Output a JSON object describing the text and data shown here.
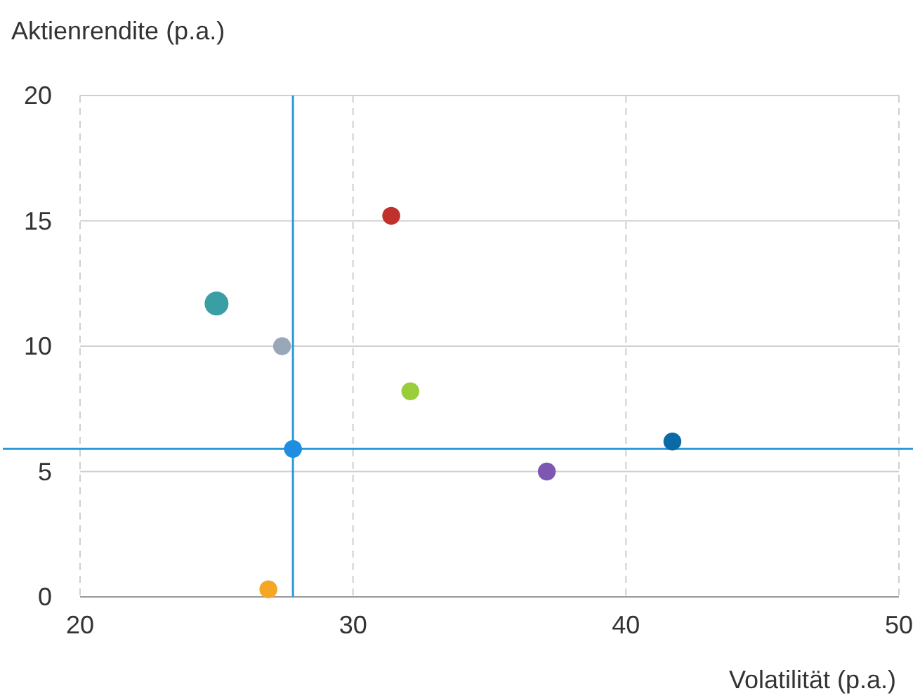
{
  "chart_data": {
    "type": "bubble",
    "xlabel": "Volatilität (p.a.)",
    "ylabel": "Aktienrendite (p.a.)",
    "x": [
      25.0,
      27.4,
      31.4,
      32.1,
      27.8,
      41.7,
      37.1,
      26.9
    ],
    "values": [
      11.7,
      10.0,
      15.2,
      8.2,
      5.9,
      6.2,
      5.0,
      0.3
    ],
    "sizes": [
      1,
      0.56,
      0.56,
      0.56,
      0.56,
      0.56,
      0.56,
      0.56
    ],
    "colors": [
      "#3a9ea5",
      "#98a8b8",
      "#c0312b",
      "#9acd3c",
      "#1e8fe0",
      "#0a6aa8",
      "#7e57b2",
      "#f5a623"
    ],
    "xlim": [
      20,
      50
    ],
    "xticks": [
      20,
      30,
      40,
      50
    ],
    "ylim": [
      0,
      20
    ],
    "yticks": [
      0,
      5,
      10,
      15,
      20
    ],
    "grid": true,
    "ref_lines": [
      {
        "axis": "x",
        "value": 27.8,
        "color": "#2b9bd8"
      },
      {
        "axis": "y",
        "value": 5.9,
        "color": "#2b9bd8"
      }
    ]
  }
}
